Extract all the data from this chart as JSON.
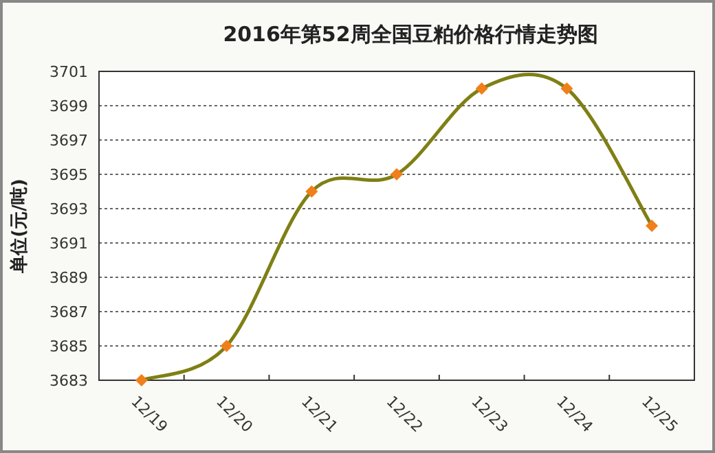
{
  "chart_data": {
    "type": "line",
    "title": "2016年第52周全国豆粕价格行情走势图",
    "ylabel": "单位(元/吨)",
    "categories": [
      "12/19",
      "12/20",
      "12/21",
      "12/22",
      "12/23",
      "12/24",
      "12/25"
    ],
    "series": [
      {
        "color": "#7f7f14",
        "values": [
          3683,
          3685,
          3694,
          3695,
          3700,
          3700,
          3692
        ]
      }
    ],
    "ylim": [
      3683,
      3701
    ],
    "yticks": [
      3683,
      3685,
      3687,
      3689,
      3691,
      3693,
      3695,
      3697,
      3699,
      3701
    ],
    "grid": "y",
    "marker": "diamond",
    "line_style": "solid"
  }
}
